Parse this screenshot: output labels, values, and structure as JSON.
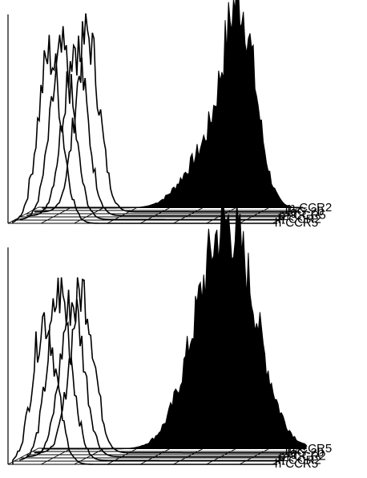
{
  "chart_data": [
    {
      "type": "histogram-3d-offset",
      "series": [
        {
          "name": "m-CCR2",
          "mode": "filled",
          "peak_pos": 0.75,
          "peak_height": 0.92,
          "width": 0.06,
          "shoulder": true
        },
        {
          "name": "IgG-2b",
          "mode": "outline",
          "peak_pos": 0.2,
          "peak_height": 0.88,
          "width": 0.045
        },
        {
          "name": "m-CCR5",
          "mode": "outline",
          "peak_pos": 0.18,
          "peak_height": 0.86,
          "width": 0.045
        },
        {
          "name": "h-CCR2",
          "mode": "outline",
          "peak_pos": 0.16,
          "peak_height": 0.82,
          "width": 0.045
        },
        {
          "name": "h-CCR5",
          "mode": "outline",
          "peak_pos": 0.14,
          "peak_height": 0.84,
          "width": 0.045
        }
      ]
    },
    {
      "type": "histogram-3d-offset",
      "series": [
        {
          "name": "m-CCR5",
          "mode": "filled",
          "peak_pos": 0.72,
          "peak_height": 0.95,
          "width": 0.1,
          "shoulder": true
        },
        {
          "name": "IgG-2b",
          "mode": "outline",
          "peak_pos": 0.18,
          "peak_height": 0.78,
          "width": 0.045
        },
        {
          "name": "m-CCR2",
          "mode": "outline",
          "peak_pos": 0.17,
          "peak_height": 0.74,
          "width": 0.045
        },
        {
          "name": "h-CCR2",
          "mode": "outline",
          "peak_pos": 0.15,
          "peak_height": 0.8,
          "width": 0.045
        },
        {
          "name": "h-CCR5",
          "mode": "outline",
          "peak_pos": 0.12,
          "peak_height": 0.7,
          "width": 0.045
        }
      ]
    }
  ]
}
